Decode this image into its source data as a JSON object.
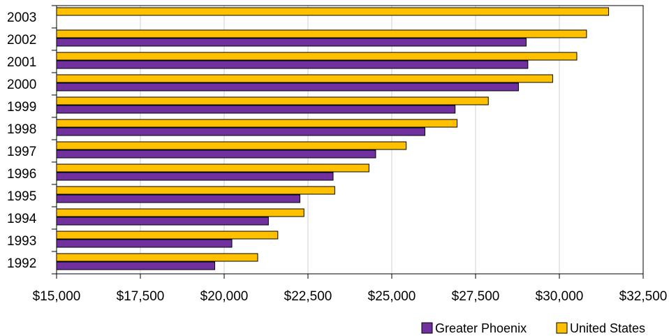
{
  "chart_data": {
    "type": "bar",
    "orientation": "horizontal",
    "title": "",
    "xlabel": "",
    "ylabel": "",
    "categories": [
      "2003",
      "2002",
      "2001",
      "2000",
      "1999",
      "1998",
      "1997",
      "1996",
      "1995",
      "1994",
      "1993",
      "1992"
    ],
    "series": [
      {
        "name": "United States",
        "color": "#ffc000",
        "values": [
          31470,
          30810,
          30520,
          29800,
          27880,
          26950,
          25430,
          24320,
          23300,
          22380,
          21600,
          21000
        ]
      },
      {
        "name": "Greater Phoenix",
        "color": "#7030a0",
        "values": [
          null,
          29010,
          29060,
          28780,
          26890,
          25990,
          24520,
          23250,
          22260,
          21320,
          20230,
          19720
        ]
      }
    ],
    "xlim": [
      15000,
      32500
    ],
    "xticks": [
      15000,
      17500,
      20000,
      22500,
      25000,
      27500,
      30000,
      32500
    ],
    "xtick_labels": [
      "$15,000",
      "$17,500",
      "$20,000",
      "$22,500",
      "$25,000",
      "$27,500",
      "$30,000",
      "$32,500"
    ],
    "grid": "vertical",
    "legend": {
      "position": "bottom-right",
      "entries": [
        "Greater Phoenix",
        "United States"
      ]
    }
  }
}
